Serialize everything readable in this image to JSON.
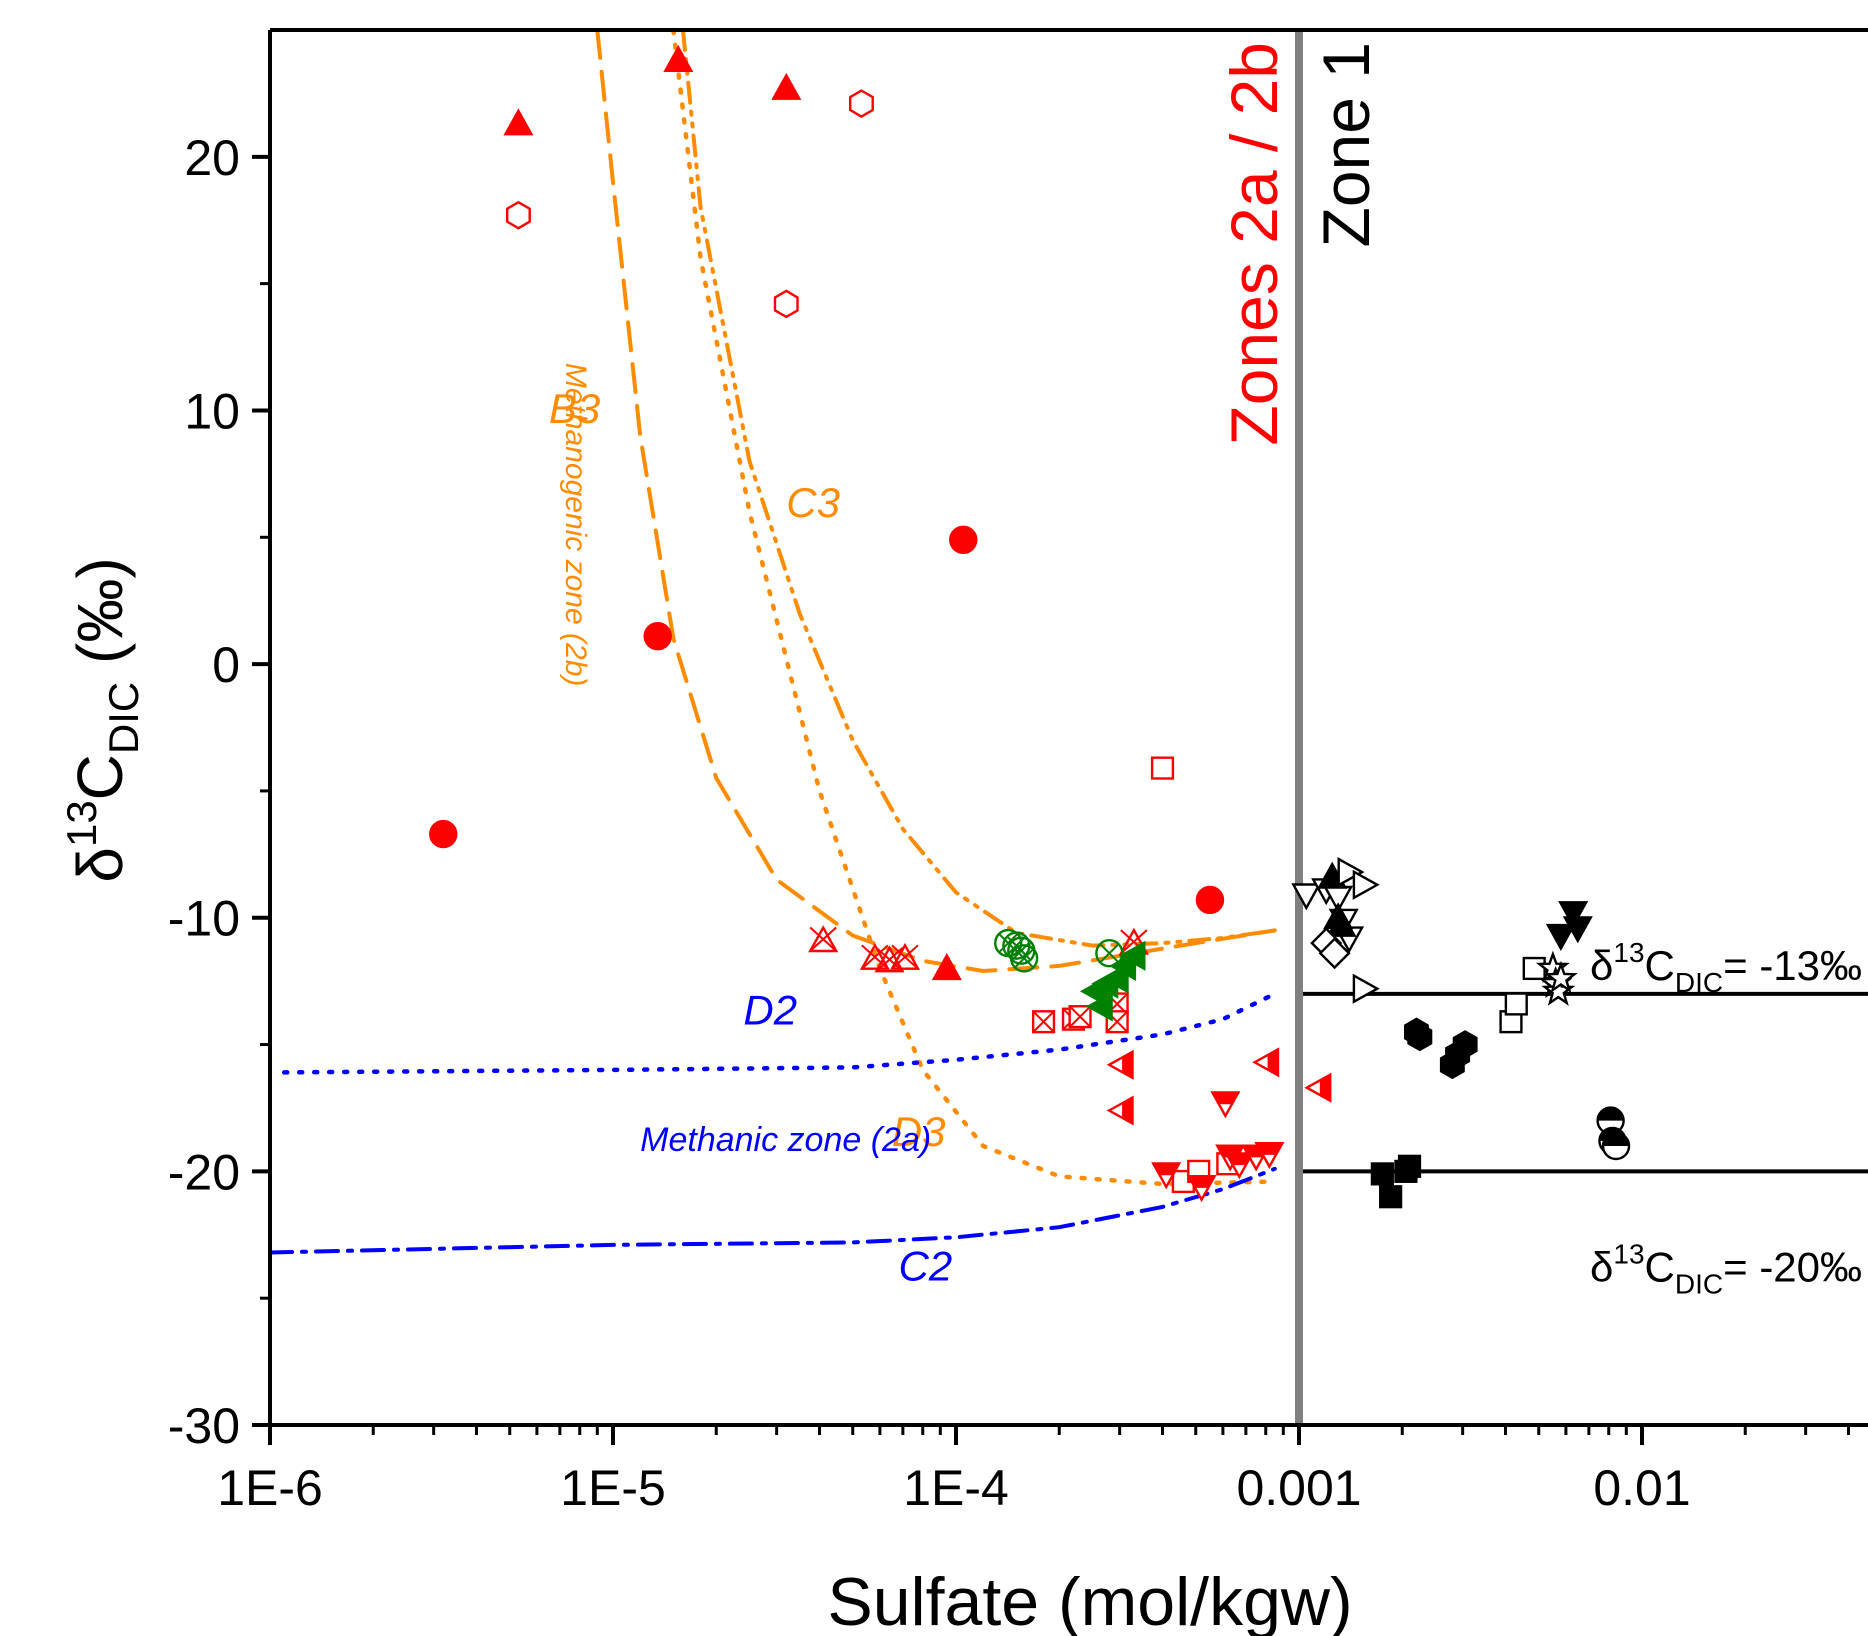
{
  "chart_data": {
    "type": "scatter",
    "xscale": "log",
    "xlim": [
      1e-06,
      0.05
    ],
    "ylim": [
      -30,
      25
    ],
    "xlabel": "Sulfate (mol/kgw)",
    "ylabel": {
      "base": "δ",
      "sup": "13",
      "main": "C",
      "sub": "DIC",
      "unit": " (‰)"
    },
    "x_ticks": [
      {
        "value": 1e-06,
        "label": "1E-6"
      },
      {
        "value": 1e-05,
        "label": "1E-5"
      },
      {
        "value": 0.0001,
        "label": "1E-4"
      },
      {
        "value": 0.001,
        "label": "0.001"
      },
      {
        "value": 0.01,
        "label": "0.01"
      }
    ],
    "y_ticks": [
      {
        "value": 20,
        "label": "20"
      },
      {
        "value": 10,
        "label": "10"
      },
      {
        "value": 0,
        "label": "0"
      },
      {
        "value": -10,
        "label": "-10"
      },
      {
        "value": -20,
        "label": "-20"
      },
      {
        "value": -30,
        "label": "-30"
      }
    ],
    "zone_boundary": {
      "x": 0.001,
      "color": "#808080"
    },
    "zone_labels": [
      {
        "text": "Zones 2a / 2b",
        "color": "#ff0000"
      },
      {
        "text": "Zone 1",
        "color": "#000000"
      }
    ],
    "reference_lines": [
      {
        "y": -13,
        "x_start": 0.001,
        "x_end": 0.05,
        "label_prefix": "δ",
        "label_sup": "13",
        "label_main": "C",
        "label_sub": "DIC",
        "label_value": "= -13‰"
      },
      {
        "y": -20,
        "x_start": 0.001,
        "x_end": 0.05,
        "label_prefix": "δ",
        "label_sup": "13",
        "label_main": "C",
        "label_sub": "DIC",
        "label_value": "= -20‰"
      }
    ],
    "curves": [
      {
        "name": "B3",
        "color": "#ff8c00",
        "dash": "dash",
        "points": [
          [
            9e-06,
            25
          ],
          [
            1e-05,
            19
          ],
          [
            1.2e-05,
            9
          ],
          [
            1.5e-05,
            1
          ],
          [
            2e-05,
            -4.5
          ],
          [
            3e-05,
            -8.5
          ],
          [
            5e-05,
            -10.7
          ],
          [
            8e-05,
            -11.7
          ],
          [
            0.00012,
            -12.1
          ],
          [
            0.0002,
            -11.9
          ],
          [
            0.0003,
            -11.5
          ],
          [
            0.0005,
            -11.0
          ],
          [
            0.00085,
            -10.5
          ]
        ]
      },
      {
        "name": "C3",
        "color": "#ff8c00",
        "dash": "dashdotdot",
        "points": [
          [
            1.6e-05,
            25
          ],
          [
            1.8e-05,
            18
          ],
          [
            2.5e-05,
            8
          ],
          [
            3.5e-05,
            2
          ],
          [
            5e-05,
            -3
          ],
          [
            7e-05,
            -6.5
          ],
          [
            0.0001,
            -9
          ],
          [
            0.00015,
            -10.6
          ],
          [
            0.00025,
            -11.1
          ],
          [
            0.0004,
            -11.0
          ],
          [
            0.0006,
            -10.8
          ],
          [
            0.00085,
            -10.5
          ]
        ]
      },
      {
        "name": "D3",
        "color": "#ff8c00",
        "dash": "dot",
        "points": [
          [
            1.5e-05,
            25
          ],
          [
            1.8e-05,
            16
          ],
          [
            2.5e-05,
            6
          ],
          [
            4e-05,
            -5
          ],
          [
            6e-05,
            -12
          ],
          [
            8e-05,
            -16
          ],
          [
            0.00012,
            -19
          ],
          [
            0.0002,
            -20.2
          ],
          [
            0.0004,
            -20.5
          ],
          [
            0.00085,
            -20.4
          ]
        ]
      },
      {
        "name": "D2",
        "color": "#0000ff",
        "dash": "dot",
        "points": [
          [
            1.1e-06,
            -16.1
          ],
          [
            1e-05,
            -16.0
          ],
          [
            5e-05,
            -15.9
          ],
          [
            0.0001,
            -15.6
          ],
          [
            0.0002,
            -15.2
          ],
          [
            0.0004,
            -14.6
          ],
          [
            0.0006,
            -14.0
          ],
          [
            0.00085,
            -13.0
          ]
        ]
      },
      {
        "name": "C2",
        "color": "#0000ff",
        "dash": "dashdot",
        "points": [
          [
            1e-06,
            -23.2
          ],
          [
            1e-05,
            -22.9
          ],
          [
            5e-05,
            -22.8
          ],
          [
            0.0001,
            -22.6
          ],
          [
            0.0002,
            -22.2
          ],
          [
            0.0004,
            -21.4
          ],
          [
            0.0006,
            -20.7
          ],
          [
            0.00085,
            -19.9
          ]
        ]
      }
    ],
    "annotations": [
      {
        "text": "B3",
        "x": 6.5e-06,
        "y": 9.5,
        "color": "#ff8c00",
        "rotate": 0
      },
      {
        "text": "C3",
        "x": 3.2e-05,
        "y": 5.8,
        "color": "#ff8c00",
        "rotate": 0
      },
      {
        "text": "D3",
        "x": 6.5e-05,
        "y": -19.0,
        "color": "#ff8c00",
        "rotate": 0
      },
      {
        "text": "D2",
        "x": 2.4e-05,
        "y": -14.2,
        "color": "#0000ff",
        "rotate": 0
      },
      {
        "text": "C2",
        "x": 6.8e-05,
        "y": -24.3,
        "color": "#0000ff",
        "rotate": 0
      },
      {
        "text": "Methanogenic zone (2b)",
        "x": 7.3e-06,
        "y": 5.5,
        "color": "#ff8c00",
        "rotate": 90
      },
      {
        "text": "Methanic zone (2a)",
        "x": 1.2e-05,
        "y": -19.2,
        "color": "#0000ff",
        "rotate": 0
      }
    ],
    "series": [
      {
        "marker": "circle",
        "fill": true,
        "color": "#ff0000",
        "points": [
          [
            3.2e-06,
            -6.7
          ],
          [
            1.35e-05,
            1.1
          ],
          [
            0.000105,
            4.9
          ],
          [
            0.00055,
            -9.3
          ]
        ]
      },
      {
        "marker": "triangle-up",
        "fill": true,
        "color": "#ff0000",
        "points": [
          [
            5.3e-06,
            21.3
          ],
          [
            1.55e-05,
            23.8
          ],
          [
            3.2e-05,
            22.7
          ],
          [
            9.4e-05,
            -12.0
          ]
        ]
      },
      {
        "marker": "hexagon",
        "fill": false,
        "color": "#ff0000",
        "points": [
          [
            5.3e-06,
            17.7
          ],
          [
            3.2e-05,
            14.2
          ],
          [
            5.3e-05,
            22.1
          ]
        ]
      },
      {
        "marker": "square",
        "fill": false,
        "color": "#ff0000",
        "points": [
          [
            0.0004,
            -4.1
          ],
          [
            0.00046,
            -20.4
          ],
          [
            0.00051,
            -20.0
          ],
          [
            0.00062,
            -19.7
          ]
        ]
      },
      {
        "marker": "triangle-cross",
        "fill": false,
        "color": "#ff0000",
        "points": [
          [
            4.1e-05,
            -10.9
          ],
          [
            5.8e-05,
            -11.6
          ],
          [
            6.4e-05,
            -11.7
          ],
          [
            7.1e-05,
            -11.6
          ],
          [
            0.00033,
            -11.0
          ]
        ]
      },
      {
        "marker": "square-cross",
        "fill": false,
        "color": "#ff0000",
        "points": [
          [
            0.00018,
            -14.1
          ],
          [
            0.00022,
            -14.0
          ],
          [
            0.00023,
            -13.9
          ],
          [
            0.000295,
            -13.4
          ],
          [
            0.000295,
            -14.1
          ]
        ]
      },
      {
        "marker": "triangle-left-half",
        "fill": true,
        "color": "#ff0000",
        "points": [
          [
            0.000305,
            -15.8
          ],
          [
            0.000305,
            -17.6
          ],
          [
            0.00081,
            -15.7
          ],
          [
            0.00115,
            -16.7
          ]
        ]
      },
      {
        "marker": "triangle-down-half",
        "fill": true,
        "color": "#ff0000",
        "points": [
          [
            0.00041,
            -20.1
          ],
          [
            0.00052,
            -20.6
          ],
          [
            0.00061,
            -17.3
          ],
          [
            0.00063,
            -19.4
          ],
          [
            0.00067,
            -19.7
          ],
          [
            0.00075,
            -19.4
          ],
          [
            0.00082,
            -19.3
          ]
        ]
      },
      {
        "marker": "circle-cross",
        "fill": false,
        "color": "#008000",
        "points": [
          [
            0.000142,
            -11.0
          ],
          [
            0.00015,
            -11.1
          ],
          [
            0.000155,
            -11.3
          ],
          [
            0.000158,
            -11.6
          ],
          [
            0.00028,
            -11.4
          ]
        ]
      },
      {
        "marker": "triangle-left",
        "fill": true,
        "color": "#008000",
        "points": [
          [
            0.000255,
            -12.9
          ],
          [
            0.000265,
            -13.5
          ],
          [
            0.000275,
            -12.6
          ],
          [
            0.000295,
            -12.4
          ],
          [
            0.00031,
            -11.9
          ],
          [
            0.00033,
            -11.5
          ]
        ]
      },
      {
        "marker": "triangle-down",
        "fill": false,
        "color": "#000000",
        "points": [
          [
            0.00105,
            -9.1
          ],
          [
            0.0012,
            -8.9
          ],
          [
            0.0013,
            -9.2
          ],
          [
            0.00135,
            -10.1
          ],
          [
            0.0014,
            -10.8
          ]
        ]
      },
      {
        "marker": "triangle-up",
        "fill": true,
        "color": "#000000",
        "points": [
          [
            0.00125,
            -8.4
          ],
          [
            0.0013,
            -10.0
          ],
          [
            0.00133,
            -10.3
          ]
        ]
      },
      {
        "marker": "diamond",
        "fill": false,
        "color": "#000000",
        "points": [
          [
            0.0012,
            -11.0
          ],
          [
            0.00127,
            -11.4
          ]
        ]
      },
      {
        "marker": "triangle-right",
        "fill": false,
        "color": "#000000",
        "points": [
          [
            0.0014,
            -8.2
          ],
          [
            0.00155,
            -8.7
          ],
          [
            0.00155,
            -12.8
          ]
        ]
      },
      {
        "marker": "hexagon",
        "fill": true,
        "color": "#000000",
        "points": [
          [
            0.0022,
            -14.5
          ],
          [
            0.00225,
            -14.7
          ],
          [
            0.0028,
            -15.8
          ],
          [
            0.0029,
            -15.4
          ],
          [
            0.00305,
            -15.0
          ]
        ]
      },
      {
        "marker": "square",
        "fill": true,
        "color": "#000000",
        "points": [
          [
            0.00175,
            -20.1
          ],
          [
            0.00185,
            -21.0
          ],
          [
            0.00205,
            -20.0
          ],
          [
            0.0021,
            -19.8
          ]
        ]
      },
      {
        "marker": "square",
        "fill": false,
        "color": "#000000",
        "points": [
          [
            0.00415,
            -14.1
          ],
          [
            0.0043,
            -13.4
          ],
          [
            0.00485,
            -12.0
          ]
        ]
      },
      {
        "marker": "star",
        "fill": false,
        "color": "#000000",
        "points": [
          [
            0.0055,
            -12.0
          ],
          [
            0.0056,
            -12.6
          ],
          [
            0.0057,
            -12.9
          ],
          [
            0.0058,
            -12.4
          ]
        ]
      },
      {
        "marker": "triangle-down",
        "fill": true,
        "color": "#000000",
        "points": [
          [
            0.0058,
            -10.7
          ],
          [
            0.0063,
            -9.8
          ],
          [
            0.0065,
            -10.4
          ]
        ]
      },
      {
        "marker": "circle-half",
        "fill": true,
        "color": "#000000",
        "points": [
          [
            0.0081,
            -18.0
          ],
          [
            0.0082,
            -18.8
          ],
          [
            0.0084,
            -19.0
          ]
        ]
      }
    ]
  }
}
